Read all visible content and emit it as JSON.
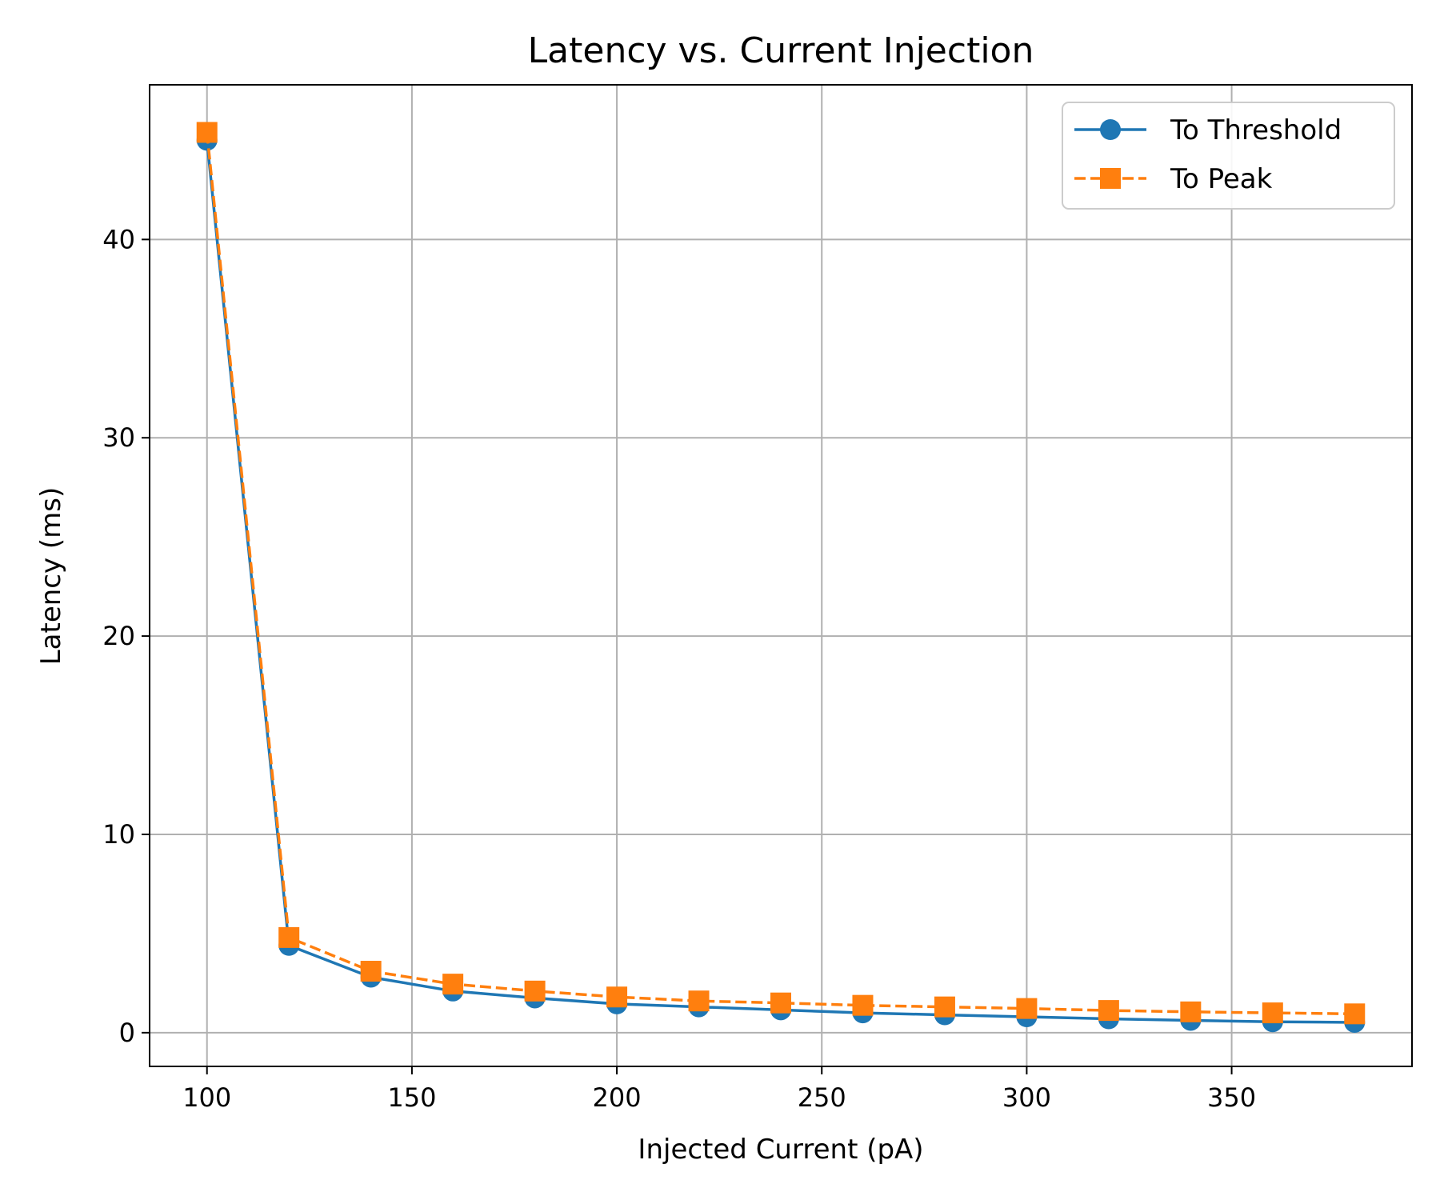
{
  "chart_data": {
    "type": "line",
    "title": "Latency vs. Current Injection",
    "xlabel": "Injected Current (pA)",
    "ylabel": "Latency (ms)",
    "xlim": [
      86,
      394
    ],
    "ylim": [
      -1.7,
      47.8
    ],
    "xticks": [
      100,
      150,
      200,
      250,
      300,
      350
    ],
    "yticks": [
      0,
      10,
      20,
      30,
      40
    ],
    "grid": true,
    "legend_position": "top-right",
    "x": [
      100,
      120,
      140,
      160,
      180,
      200,
      220,
      240,
      260,
      280,
      300,
      320,
      340,
      360,
      380
    ],
    "series": [
      {
        "name": "To Threshold",
        "color": "#1f77b4",
        "marker": "circle",
        "linestyle": "solid",
        "values": [
          45.0,
          4.4,
          2.8,
          2.1,
          1.75,
          1.45,
          1.3,
          1.15,
          1.0,
          0.9,
          0.8,
          0.7,
          0.62,
          0.55,
          0.52
        ]
      },
      {
        "name": "To Peak",
        "color": "#ff7f0e",
        "marker": "square",
        "linestyle": "dashed",
        "values": [
          45.4,
          4.8,
          3.1,
          2.45,
          2.1,
          1.8,
          1.6,
          1.5,
          1.38,
          1.3,
          1.22,
          1.12,
          1.05,
          1.0,
          0.95
        ]
      }
    ]
  }
}
